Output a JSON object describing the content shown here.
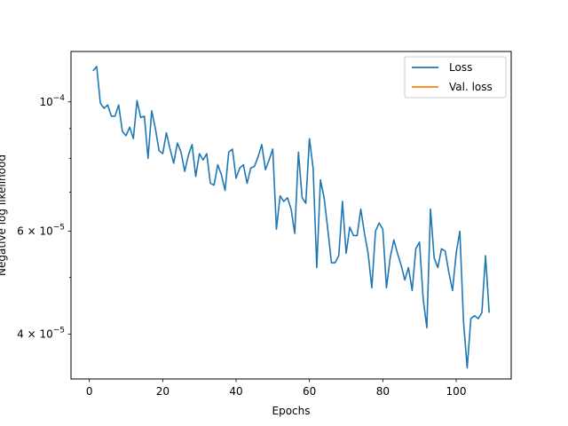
{
  "chart_data": {
    "type": "line",
    "title": "",
    "xlabel": "Epochs",
    "ylabel": "Negative log likelihood",
    "yscale": "log",
    "xlim": [
      -5,
      115
    ],
    "ylim": [
      3.35e-05,
      0.000122
    ],
    "grid": false,
    "legend_position": "top-right",
    "x_ticks": [
      0,
      20,
      40,
      60,
      80,
      100
    ],
    "x_tick_labels": [
      "0",
      "20",
      "40",
      "60",
      "80",
      "100"
    ],
    "y_ticks": [
      {
        "value": 0.0001,
        "mantissa": "",
        "base": "10",
        "exp": "−4"
      },
      {
        "value": 6e-05,
        "mantissa": "6 × ",
        "base": "10",
        "exp": "−5"
      },
      {
        "value": 4e-05,
        "mantissa": "4 × ",
        "base": "10",
        "exp": "−5"
      }
    ],
    "series": [
      {
        "name": "Loss",
        "color": "#1f77b4",
        "x": [
          1,
          2,
          3,
          4,
          5,
          6,
          7,
          8,
          9,
          10,
          11,
          12,
          13,
          14,
          15,
          16,
          17,
          18,
          19,
          20,
          21,
          22,
          23,
          24,
          25,
          26,
          27,
          28,
          29,
          30,
          31,
          32,
          33,
          34,
          35,
          36,
          37,
          38,
          39,
          40,
          41,
          42,
          43,
          44,
          45,
          46,
          47,
          48,
          49,
          50,
          51,
          52,
          53,
          54,
          55,
          56,
          57,
          58,
          59,
          60,
          61,
          62,
          63,
          64,
          65,
          66,
          67,
          68,
          69,
          70,
          71,
          72,
          73,
          74,
          75,
          76,
          77,
          78,
          79,
          80,
          81,
          82,
          83,
          84,
          85,
          86,
          87,
          88,
          89,
          90,
          91,
          92,
          93,
          94,
          95,
          96,
          97,
          98,
          99,
          100,
          101,
          102,
          103,
          104,
          105,
          106,
          107,
          108,
          109
        ],
        "y": [
          0.000113,
          0.000115,
          9.95e-05,
          9.75e-05,
          9.88e-05,
          9.45e-05,
          9.45e-05,
          9.88e-05,
          8.9e-05,
          8.75e-05,
          9.05e-05,
          8.65e-05,
          0.0001005,
          9.4e-05,
          9.45e-05,
          8e-05,
          9.65e-05,
          9e-05,
          8.25e-05,
          8.15e-05,
          8.85e-05,
          8.3e-05,
          7.85e-05,
          8.5e-05,
          8.2e-05,
          7.6e-05,
          8.1e-05,
          8.45e-05,
          7.45e-05,
          8.15e-05,
          7.95e-05,
          8.15e-05,
          7.25e-05,
          7.2e-05,
          7.8e-05,
          7.5e-05,
          7.05e-05,
          8.2e-05,
          8.3e-05,
          7.4e-05,
          7.7e-05,
          7.8e-05,
          7.25e-05,
          7.7e-05,
          7.75e-05,
          8.05e-05,
          8.45e-05,
          7.65e-05,
          7.95e-05,
          8.3e-05,
          6.05e-05,
          6.9e-05,
          6.75e-05,
          6.85e-05,
          6.55e-05,
          5.95e-05,
          8.2e-05,
          6.85e-05,
          6.7e-05,
          8.65e-05,
          7.7e-05,
          5.2e-05,
          7.35e-05,
          6.85e-05,
          6.05e-05,
          5.3e-05,
          5.3e-05,
          5.45e-05,
          6.75e-05,
          5.5e-05,
          6.1e-05,
          5.9e-05,
          5.9e-05,
          6.55e-05,
          5.95e-05,
          5.5e-05,
          4.8e-05,
          6e-05,
          6.2e-05,
          6.05e-05,
          4.8e-05,
          5.4e-05,
          5.8e-05,
          5.5e-05,
          5.25e-05,
          4.95e-05,
          5.2e-05,
          4.75e-05,
          5.6e-05,
          5.75e-05,
          4.6e-05,
          4.1e-05,
          6.55e-05,
          5.4e-05,
          5.2e-05,
          5.6e-05,
          5.55e-05,
          5.1e-05,
          4.75e-05,
          5.5e-05,
          6e-05,
          4.2e-05,
          3.5e-05,
          4.25e-05,
          4.3e-05,
          4.25e-05,
          4.35e-05,
          5.45e-05,
          4.35e-05
        ]
      },
      {
        "name": "Val. loss",
        "color": "#ff7f0e",
        "x": [],
        "y": []
      }
    ]
  }
}
